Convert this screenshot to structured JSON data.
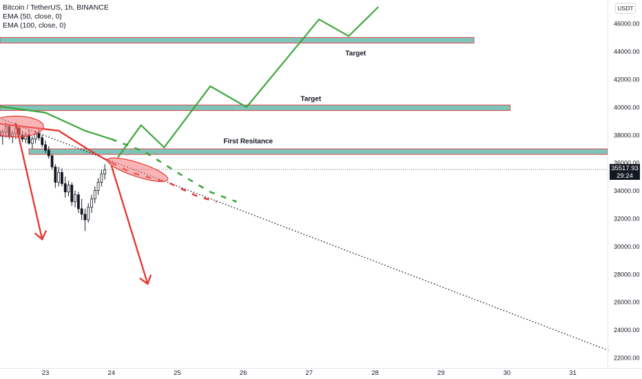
{
  "legend": {
    "symbol": "Bitcoin / TetherUS, 1h, BINANCE",
    "ema50": "EMA (50, close, 0)",
    "ema100": "EMA (100, close, 0)"
  },
  "currency": "USDT",
  "last_price": "35517.93",
  "countdown": "29:24",
  "annotations": {
    "target_upper": "Target",
    "target_lower": "Target",
    "first_resistance": "First Resitance"
  },
  "colors": {
    "zone_fill": "#7fc4b8",
    "zone_border": "#e0474c",
    "up_path": "#3aa53a",
    "down_arrow": "#e53935",
    "trendline": "#131722"
  },
  "chart_data": {
    "type": "candlestick",
    "symbol": "Bitcoin / TetherUS",
    "interval": "1h",
    "exchange": "BINANCE",
    "x_ticks": [
      "23",
      "24",
      "25",
      "26",
      "27",
      "28",
      "29",
      "30",
      "31"
    ],
    "y_ticks": [
      22000,
      24000,
      26000,
      28000,
      30000,
      32000,
      34000,
      36000,
      38000,
      40000,
      42000,
      44000,
      46000
    ],
    "ylim": [
      21200,
      47200
    ],
    "y_tick_labels": [
      "22000.00",
      "24000.00",
      "26000.00",
      "28000.00",
      "30000.00",
      "32000.00",
      "34000.00",
      "36000.00",
      "38000.00",
      "40000.00",
      "42000.00",
      "44000.00",
      "46000.00"
    ],
    "last_price": 35517.93,
    "zones": [
      {
        "label": "Target",
        "low": 44600,
        "high": 45000,
        "x_from": 22.3,
        "x_to": 29.5
      },
      {
        "label": "Target",
        "low": 39750,
        "high": 40150,
        "x_from": 22.3,
        "x_to": 30.05
      },
      {
        "label": "First Resitance",
        "low": 36600,
        "high": 37000,
        "x_from": 22.75,
        "x_to": 31.55
      }
    ],
    "projected_path_up": [
      [
        24.1,
        36400
      ],
      [
        24.45,
        38700
      ],
      [
        24.8,
        37100
      ],
      [
        25.5,
        41500
      ],
      [
        26.05,
        40000
      ],
      [
        27.15,
        46300
      ],
      [
        27.6,
        45100
      ],
      [
        28.05,
        47200
      ]
    ],
    "trendline": [
      [
        22.3,
        39200
      ],
      [
        31.55,
        22500
      ]
    ],
    "ema50_projection": [
      [
        22.3,
        40050
      ],
      [
        23.0,
        39600
      ],
      [
        23.6,
        38300
      ],
      [
        24.0,
        37700
      ],
      [
        24.5,
        36800
      ],
      [
        25.0,
        35300
      ],
      [
        25.5,
        33900
      ],
      [
        25.9,
        33200
      ]
    ],
    "ema100_projection": [
      [
        22.3,
        38800
      ],
      [
        23.2,
        38300
      ],
      [
        23.7,
        36800
      ],
      [
        24.0,
        36000
      ],
      [
        24.3,
        35300
      ],
      [
        24.9,
        34500
      ],
      [
        25.3,
        33600
      ],
      [
        25.6,
        33200
      ]
    ],
    "down_arrows": [
      {
        "from": [
          22.55,
          38800
        ],
        "to": [
          22.95,
          30500
        ]
      },
      {
        "from": [
          24.0,
          35800
        ],
        "to": [
          24.55,
          27300
        ]
      }
    ],
    "highlight_ellipses": [
      {
        "center": [
          22.55,
          38600
        ],
        "rx_days": 0.42,
        "ry_value": 750
      },
      {
        "center": [
          24.4,
          35500
        ],
        "rx_days": 0.48,
        "ry_value": 500
      }
    ],
    "candles": [
      {
        "t": 22.3,
        "o": 38300,
        "h": 38700,
        "l": 37600,
        "c": 37900
      },
      {
        "t": 22.35,
        "o": 37900,
        "h": 38400,
        "l": 37300,
        "c": 38200
      },
      {
        "t": 22.4,
        "o": 38200,
        "h": 38900,
        "l": 37800,
        "c": 38600
      },
      {
        "t": 22.45,
        "o": 38600,
        "h": 38800,
        "l": 37700,
        "c": 37900
      },
      {
        "t": 22.5,
        "o": 37900,
        "h": 38300,
        "l": 37400,
        "c": 38100
      },
      {
        "t": 22.55,
        "o": 38100,
        "h": 38900,
        "l": 37700,
        "c": 38500
      },
      {
        "t": 22.6,
        "o": 38500,
        "h": 38700,
        "l": 37800,
        "c": 38000
      },
      {
        "t": 22.65,
        "o": 38000,
        "h": 38300,
        "l": 37500,
        "c": 37700
      },
      {
        "t": 22.7,
        "o": 37700,
        "h": 38200,
        "l": 37400,
        "c": 38000
      },
      {
        "t": 22.75,
        "o": 38000,
        "h": 38400,
        "l": 37300,
        "c": 37400
      },
      {
        "t": 22.8,
        "o": 37400,
        "h": 37900,
        "l": 37000,
        "c": 37700
      },
      {
        "t": 22.85,
        "o": 37700,
        "h": 38300,
        "l": 37400,
        "c": 38100
      },
      {
        "t": 22.9,
        "o": 38100,
        "h": 38400,
        "l": 37600,
        "c": 37800
      },
      {
        "t": 22.95,
        "o": 37800,
        "h": 38000,
        "l": 37100,
        "c": 37300
      },
      {
        "t": 23.0,
        "o": 37300,
        "h": 37600,
        "l": 36700,
        "c": 36900
      },
      {
        "t": 23.05,
        "o": 36900,
        "h": 37200,
        "l": 36300,
        "c": 36500
      },
      {
        "t": 23.1,
        "o": 36500,
        "h": 36600,
        "l": 35500,
        "c": 35700
      },
      {
        "t": 23.15,
        "o": 35700,
        "h": 35900,
        "l": 34200,
        "c": 34600
      },
      {
        "t": 23.2,
        "o": 34600,
        "h": 35700,
        "l": 34300,
        "c": 35300
      },
      {
        "t": 23.25,
        "o": 35300,
        "h": 35600,
        "l": 34300,
        "c": 34500
      },
      {
        "t": 23.3,
        "o": 34500,
        "h": 35000,
        "l": 33500,
        "c": 33900
      },
      {
        "t": 23.35,
        "o": 33900,
        "h": 34700,
        "l": 33600,
        "c": 34400
      },
      {
        "t": 23.4,
        "o": 34400,
        "h": 34600,
        "l": 32900,
        "c": 33200
      },
      {
        "t": 23.45,
        "o": 33200,
        "h": 34000,
        "l": 32800,
        "c": 33700
      },
      {
        "t": 23.5,
        "o": 33700,
        "h": 33900,
        "l": 32400,
        "c": 32700
      },
      {
        "t": 23.55,
        "o": 32700,
        "h": 33400,
        "l": 31900,
        "c": 32300
      },
      {
        "t": 23.6,
        "o": 32300,
        "h": 32700,
        "l": 31100,
        "c": 31900
      },
      {
        "t": 23.65,
        "o": 31900,
        "h": 33100,
        "l": 31700,
        "c": 32800
      },
      {
        "t": 23.7,
        "o": 32800,
        "h": 33700,
        "l": 32400,
        "c": 33400
      },
      {
        "t": 23.75,
        "o": 33400,
        "h": 34300,
        "l": 33100,
        "c": 34000
      },
      {
        "t": 23.8,
        "o": 34000,
        "h": 34900,
        "l": 33700,
        "c": 34600
      },
      {
        "t": 23.85,
        "o": 34600,
        "h": 35500,
        "l": 34300,
        "c": 35200
      },
      {
        "t": 23.9,
        "o": 35200,
        "h": 35900,
        "l": 34800,
        "c": 35500
      }
    ]
  }
}
